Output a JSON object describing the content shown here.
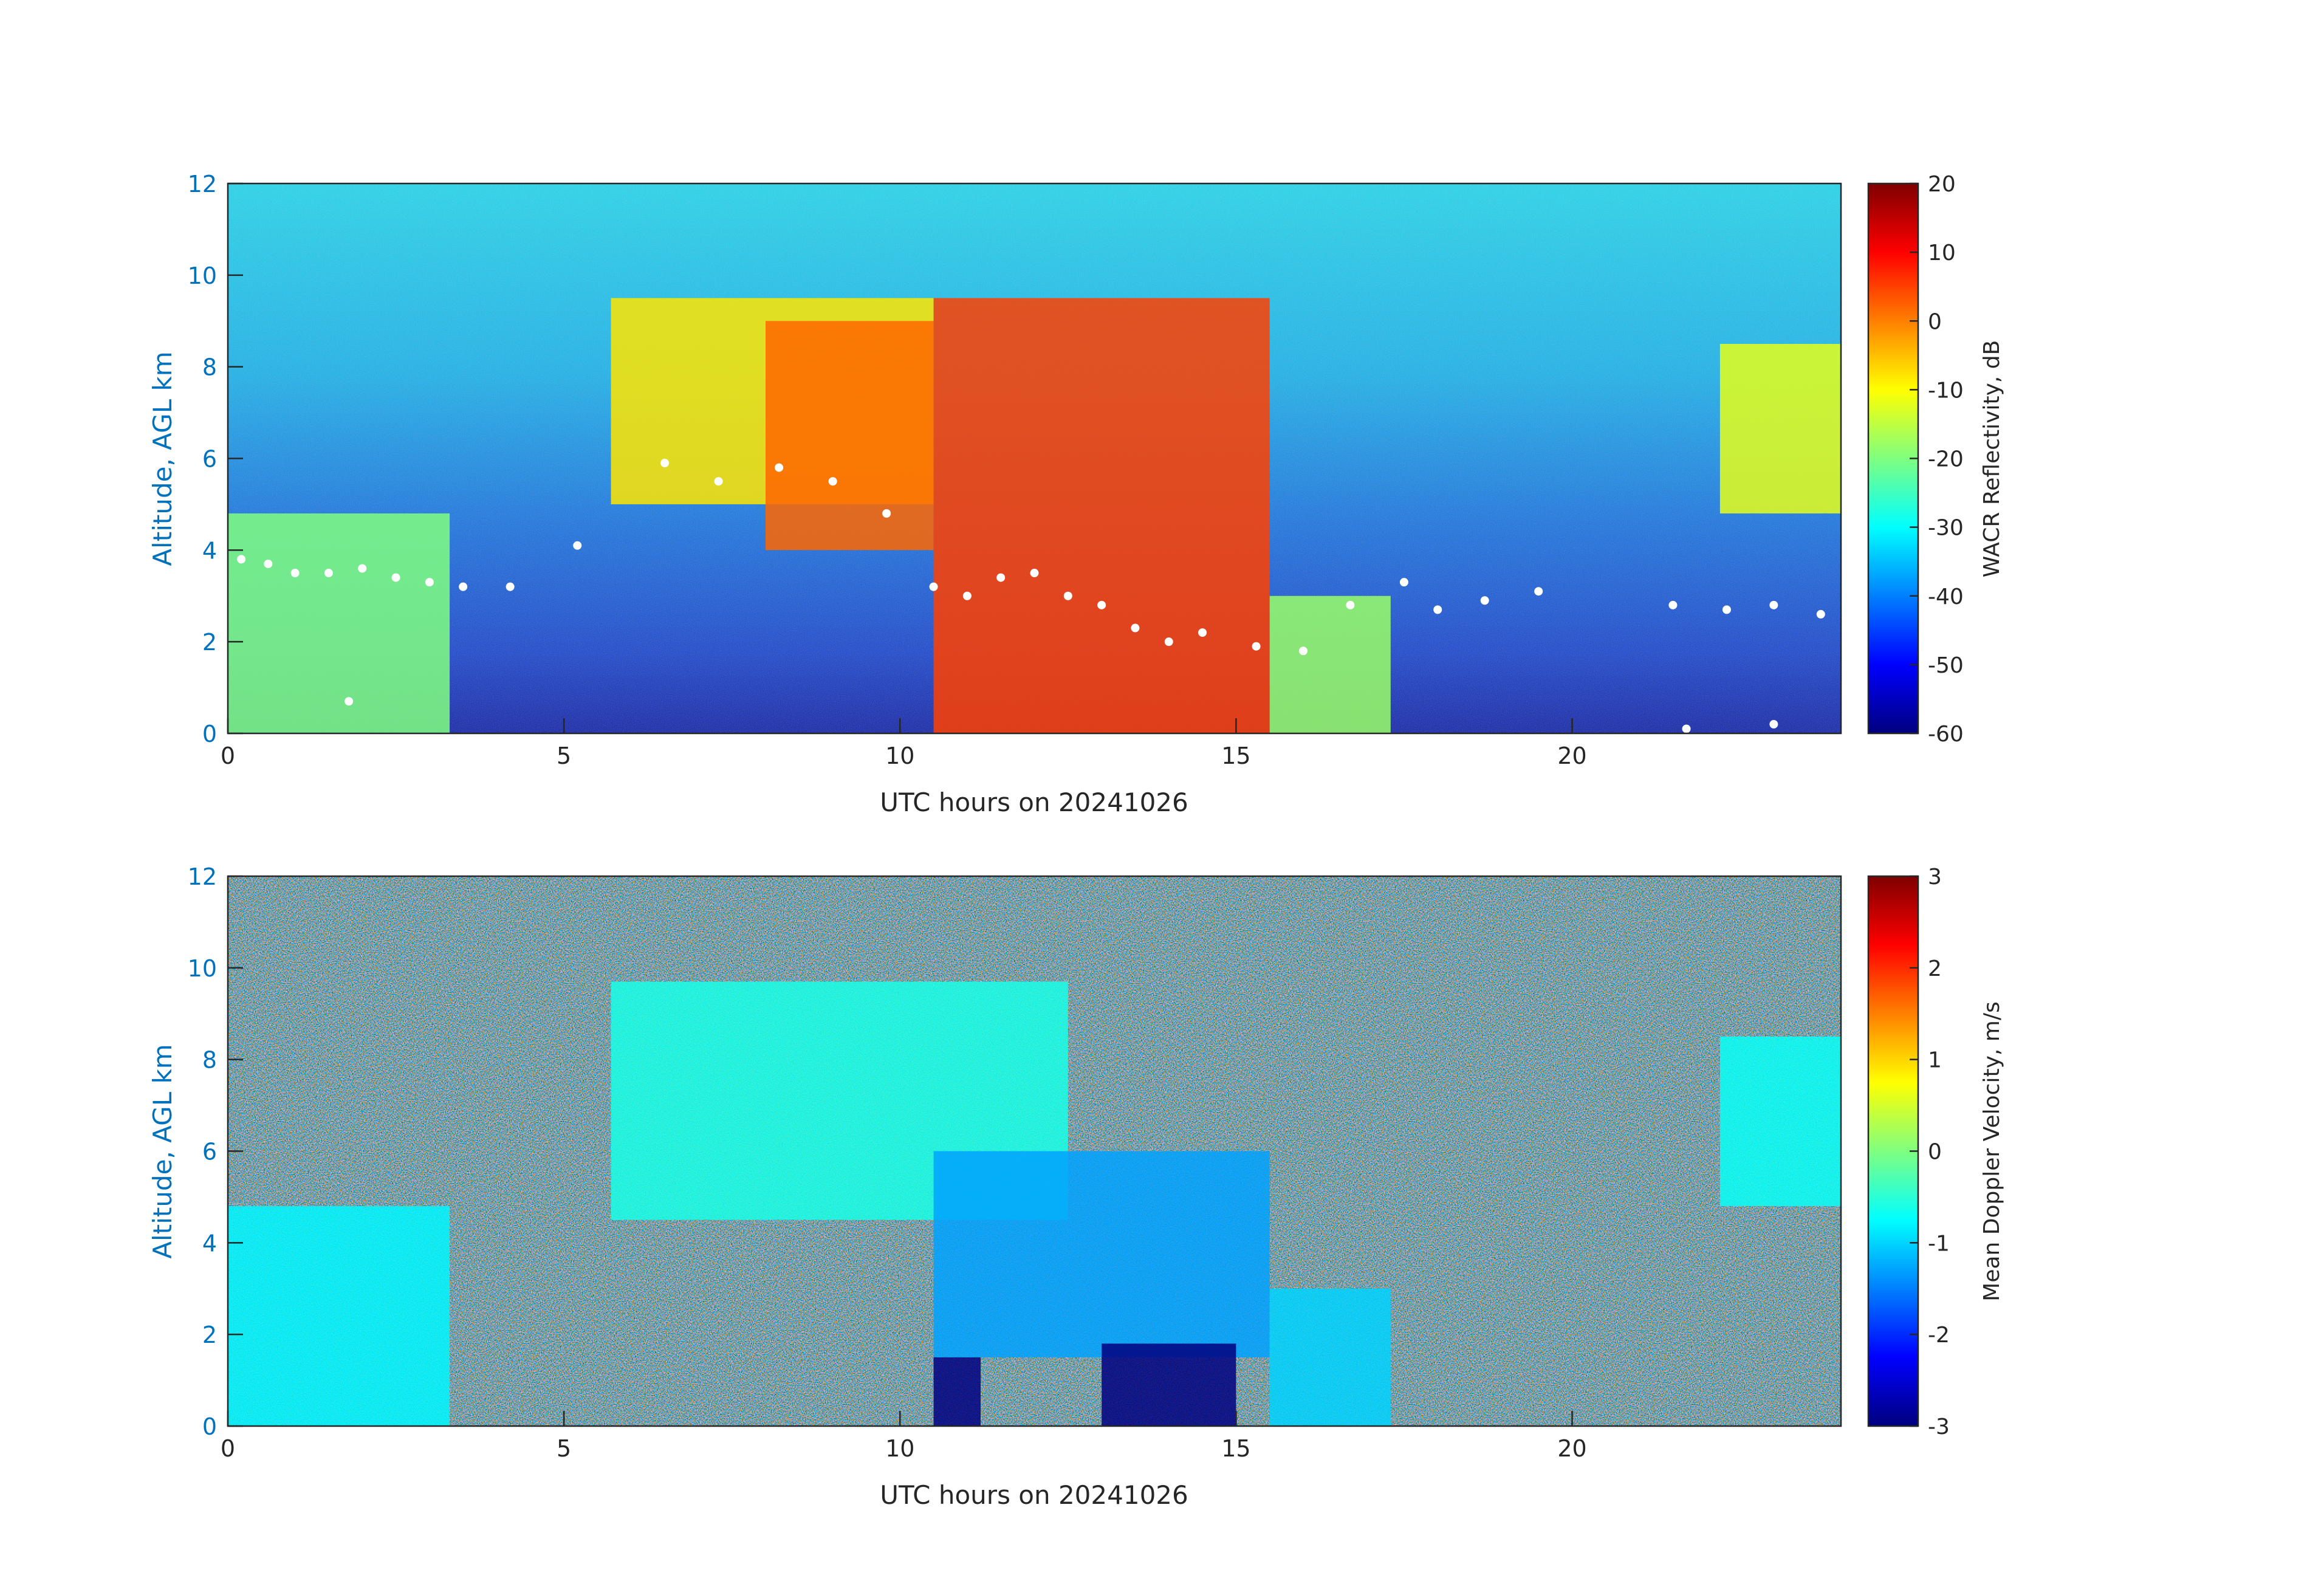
{
  "chart_data": [
    {
      "type": "heatmap",
      "xlabel": "UTC hours on 20241026",
      "ylabel": "Altitude, AGL km",
      "xlim": [
        0,
        24
      ],
      "ylim": [
        0,
        12
      ],
      "xticks": [
        0,
        5,
        10,
        15,
        20
      ],
      "yticks": [
        0,
        2,
        4,
        6,
        8,
        10,
        12
      ],
      "colorbar": {
        "label": "WACR Reflectivity, dB",
        "range": [
          -60,
          20
        ],
        "ticks": [
          20,
          10,
          0,
          -10,
          -20,
          -30,
          -40,
          -50,
          -60
        ],
        "colormap": "jet"
      },
      "regions": [
        {
          "x_start": 0.0,
          "x_end": 3.3,
          "y_bottom": 0.0,
          "y_top": 4.8,
          "value": -20
        },
        {
          "x_start": 5.7,
          "x_end": 10.5,
          "y_bottom": 5.0,
          "y_top": 9.5,
          "value": -8
        },
        {
          "x_start": 8.0,
          "x_end": 10.5,
          "y_bottom": 4.0,
          "y_top": 9.0,
          "value": 2
        },
        {
          "x_start": 10.5,
          "x_end": 15.5,
          "y_bottom": 0.0,
          "y_top": 9.5,
          "value": 5
        },
        {
          "x_start": 15.5,
          "x_end": 17.3,
          "y_bottom": 0.0,
          "y_top": 3.0,
          "value": -18
        },
        {
          "x_start": 22.2,
          "x_end": 24.0,
          "y_bottom": 4.8,
          "y_top": 8.5,
          "value": -12
        }
      ],
      "cloud_base_markers": [
        {
          "x": 0.2,
          "y": 3.8
        },
        {
          "x": 0.6,
          "y": 3.7
        },
        {
          "x": 1.0,
          "y": 3.5
        },
        {
          "x": 1.5,
          "y": 3.5
        },
        {
          "x": 2.0,
          "y": 3.6
        },
        {
          "x": 2.5,
          "y": 3.4
        },
        {
          "x": 3.0,
          "y": 3.3
        },
        {
          "x": 3.5,
          "y": 3.2
        },
        {
          "x": 4.2,
          "y": 3.2
        },
        {
          "x": 6.5,
          "y": 5.9
        },
        {
          "x": 7.3,
          "y": 5.5
        },
        {
          "x": 8.2,
          "y": 5.8
        },
        {
          "x": 9.0,
          "y": 5.5
        },
        {
          "x": 9.8,
          "y": 4.8
        },
        {
          "x": 10.5,
          "y": 3.2
        },
        {
          "x": 11.0,
          "y": 3.0
        },
        {
          "x": 11.5,
          "y": 3.4
        },
        {
          "x": 12.0,
          "y": 3.5
        },
        {
          "x": 12.5,
          "y": 3.0
        },
        {
          "x": 13.0,
          "y": 2.8
        },
        {
          "x": 13.5,
          "y": 2.3
        },
        {
          "x": 14.0,
          "y": 2.0
        },
        {
          "x": 14.5,
          "y": 2.2
        },
        {
          "x": 15.3,
          "y": 1.9
        },
        {
          "x": 16.0,
          "y": 1.8
        },
        {
          "x": 16.7,
          "y": 2.8
        },
        {
          "x": 17.5,
          "y": 3.3
        },
        {
          "x": 18.0,
          "y": 2.7
        },
        {
          "x": 18.7,
          "y": 2.9
        },
        {
          "x": 19.5,
          "y": 3.1
        },
        {
          "x": 21.5,
          "y": 2.8
        },
        {
          "x": 22.3,
          "y": 2.7
        },
        {
          "x": 23.0,
          "y": 2.8
        },
        {
          "x": 23.7,
          "y": 2.6
        },
        {
          "x": 21.7,
          "y": 0.1
        },
        {
          "x": 23.0,
          "y": 0.2
        },
        {
          "x": 5.2,
          "y": 4.1
        },
        {
          "x": 1.8,
          "y": 0.7
        }
      ]
    },
    {
      "type": "heatmap",
      "xlabel": "UTC hours on 20241026",
      "ylabel": "Altitude, AGL km",
      "xlim": [
        0,
        24
      ],
      "ylim": [
        0,
        12
      ],
      "xticks": [
        0,
        5,
        10,
        15,
        20
      ],
      "yticks": [
        0,
        2,
        4,
        6,
        8,
        10,
        12
      ],
      "colorbar": {
        "label": "Mean Doppler Velocity, m/s",
        "range": [
          -3,
          3
        ],
        "ticks": [
          3,
          2,
          1,
          0,
          -1,
          -2,
          -3
        ],
        "colormap": "jet"
      },
      "regions": [
        {
          "x_start": 0.0,
          "x_end": 3.3,
          "y_bottom": 0.0,
          "y_top": 4.8,
          "value": -0.8
        },
        {
          "x_start": 5.7,
          "x_end": 12.5,
          "y_bottom": 4.5,
          "y_top": 9.7,
          "value": -0.6
        },
        {
          "x_start": 10.5,
          "x_end": 15.5,
          "y_bottom": 1.5,
          "y_top": 6.0,
          "value": -1.3
        },
        {
          "x_start": 10.5,
          "x_end": 11.2,
          "y_bottom": 0.0,
          "y_top": 1.5,
          "value": -3.0
        },
        {
          "x_start": 13.0,
          "x_end": 15.0,
          "y_bottom": 0.0,
          "y_top": 1.8,
          "value": -3.0
        },
        {
          "x_start": 15.5,
          "x_end": 17.3,
          "y_bottom": 0.0,
          "y_top": 3.0,
          "value": -1.0
        },
        {
          "x_start": 22.2,
          "x_end": 24.0,
          "y_bottom": 4.8,
          "y_top": 8.5,
          "value": -0.7
        }
      ]
    }
  ]
}
